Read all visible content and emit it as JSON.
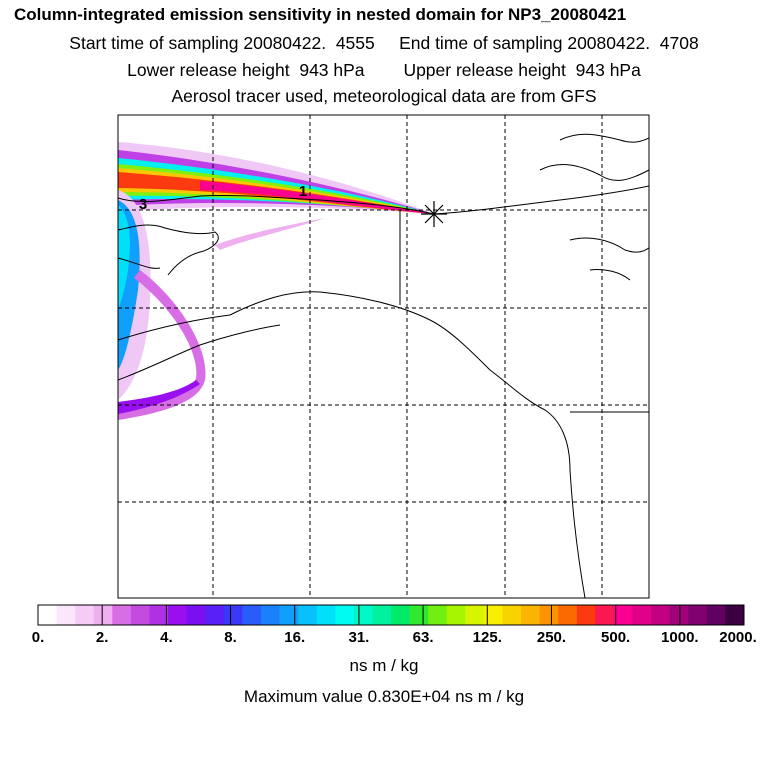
{
  "titles": {
    "line1": "Column-integrated emission sensitivity in nested domain for NP3_20080421",
    "line2": "Start time of sampling 20080422.  4555     End time of sampling 20080422.  4708",
    "line3": "Lower release height  943 hPa        Upper release height  943 hPa",
    "line4": "Aerosol tracer used, meteorological data are from GFS"
  },
  "map": {
    "cluster_labels": [
      "1",
      "3"
    ],
    "release_point_marker": "star-icon"
  },
  "colorbar": {
    "tick_labels": [
      "0.",
      "2.",
      "4.",
      "8.",
      "16.",
      "31.",
      "63.",
      "125.",
      "250.",
      "500.",
      "1000.",
      "2000."
    ],
    "colors": [
      "#ffffff",
      "#fbe6fb",
      "#f5ccf5",
      "#eeb0ef",
      "#d86ee6",
      "#c44ae0",
      "#b030e6",
      "#9a0ff0",
      "#7a10f2",
      "#5a20f5",
      "#3a38f8",
      "#2a5cfa",
      "#1a80fb",
      "#10a0fb",
      "#08c0fb",
      "#00e0fb",
      "#00fbf3",
      "#00f7c8",
      "#00f2a0",
      "#00ea6a",
      "#30e830",
      "#70ef10",
      "#a8f500",
      "#d8f500",
      "#f8f000",
      "#fad200",
      "#fbb400",
      "#fb9400",
      "#fb6a00",
      "#fb3a10",
      "#fb1850",
      "#fb0090",
      "#e0008a",
      "#c00080",
      "#a00078",
      "#800070",
      "#600060",
      "#3a0040"
    ],
    "units": "ns m / kg",
    "max_value_text": "Maximum value  0.830E+04 ns m / kg"
  }
}
